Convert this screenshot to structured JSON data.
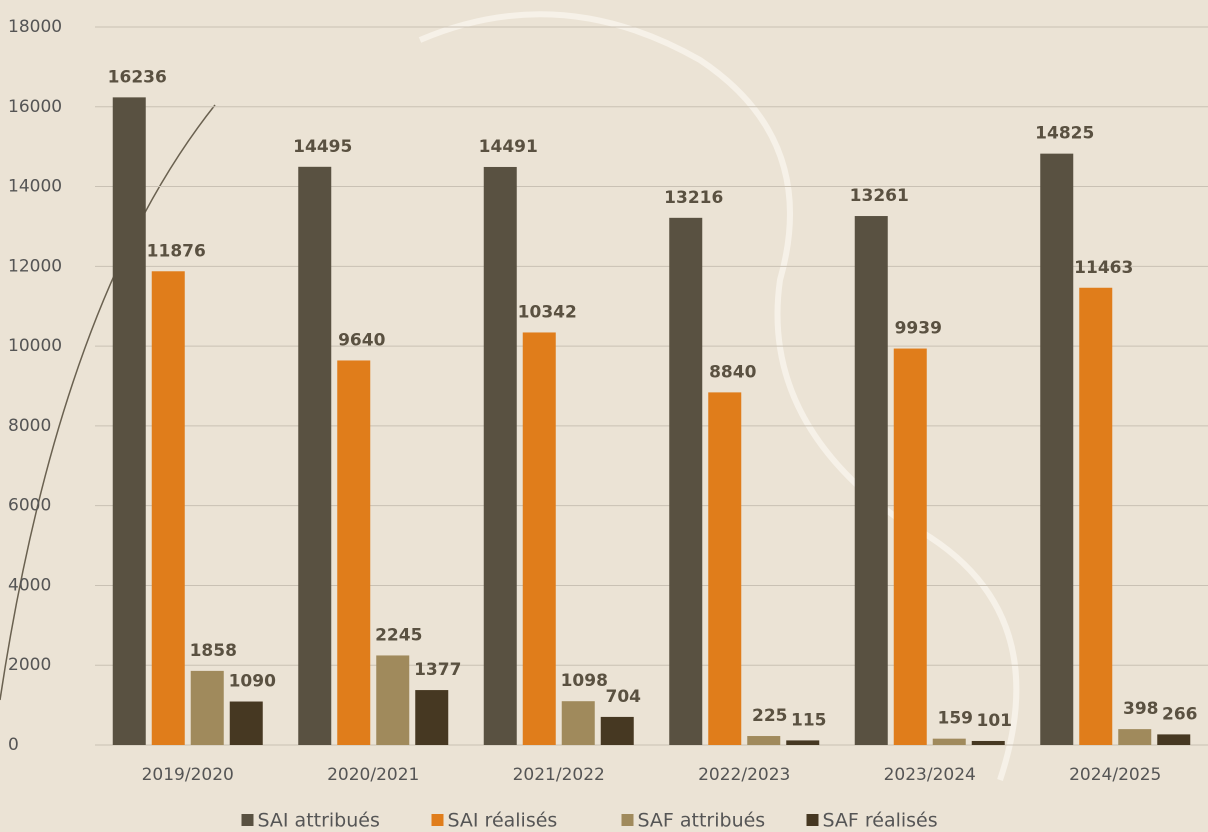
{
  "chart_data": {
    "type": "bar",
    "categories": [
      "2019/2020",
      "2020/2021",
      "2021/2022",
      "2022/2023",
      "2023/2024",
      "2024/2025"
    ],
    "series": [
      {
        "name": "SAI attribués",
        "color": "#595141",
        "values": [
          16236,
          14495,
          14491,
          13216,
          13261,
          14825
        ]
      },
      {
        "name": "SAI réalisés",
        "color": "#e07d1b",
        "values": [
          11876,
          9640,
          10342,
          8840,
          9939,
          11463
        ]
      },
      {
        "name": "SAF attribués",
        "color": "#a08a5c",
        "values": [
          1858,
          2245,
          1098,
          225,
          159,
          398
        ]
      },
      {
        "name": "SAF réalisés",
        "color": "#463822",
        "values": [
          1090,
          1377,
          704,
          115,
          101,
          266
        ]
      }
    ],
    "ylim": [
      0,
      18000
    ],
    "yticks": [
      0,
      2000,
      4000,
      6000,
      8000,
      10000,
      12000,
      14000,
      16000,
      18000
    ],
    "grid": true,
    "legend": "bottom"
  }
}
